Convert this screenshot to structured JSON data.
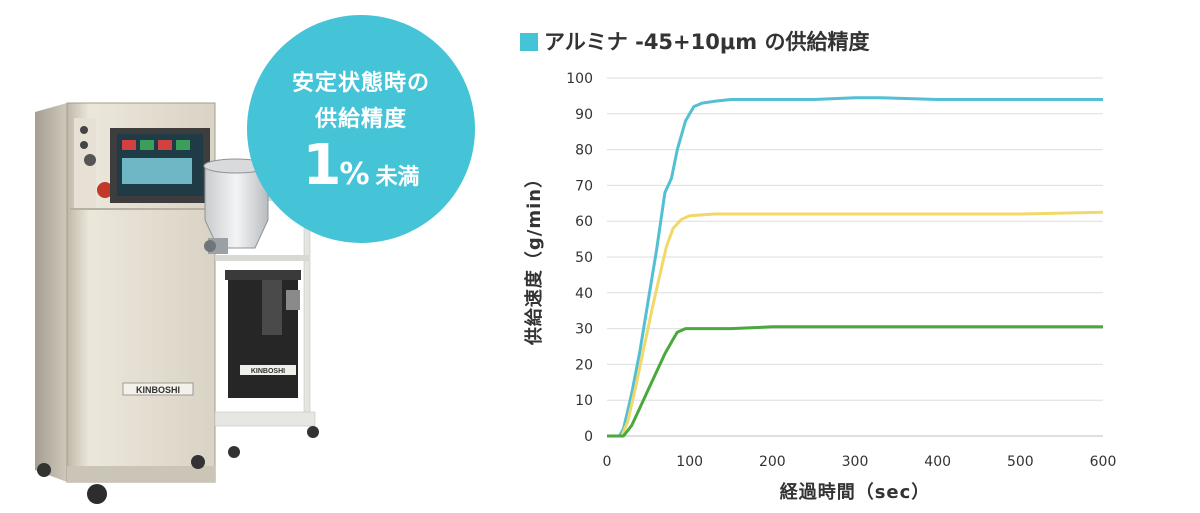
{
  "badge": {
    "line1": "安定状態時の",
    "line2": "供給精度",
    "value": "1",
    "unit": "%",
    "suffix": "未満"
  },
  "machine": {
    "brand_main": "KINBOSHI",
    "brand_hopper": "KINBOSHI"
  },
  "chart_data": {
    "type": "line",
    "title": "アルミナ -45+10μm の供給精度",
    "xlabel": "経過時間（sec）",
    "ylabel": "供給速度（g/min）",
    "xlim": [
      0,
      600
    ],
    "ylim": [
      0,
      100
    ],
    "xticks": [
      0,
      100,
      200,
      300,
      400,
      500,
      600
    ],
    "yticks": [
      0,
      10,
      20,
      30,
      40,
      50,
      60,
      70,
      80,
      90,
      100
    ],
    "grid": "horizontal",
    "legend": "none",
    "series": [
      {
        "color": "#52bfd3",
        "x": [
          0,
          15,
          20,
          30,
          40,
          50,
          60,
          70,
          78,
          85,
          95,
          105,
          115,
          130,
          150,
          200,
          250,
          300,
          330,
          400,
          500,
          600
        ],
        "y": [
          0,
          0,
          2,
          12,
          24,
          38,
          52,
          68,
          72,
          80,
          88,
          92,
          93,
          93.5,
          94,
          94,
          94,
          94.5,
          94.5,
          94,
          94,
          94
        ]
      },
      {
        "color": "#f0d96a",
        "x": [
          0,
          18,
          25,
          35,
          45,
          55,
          65,
          72,
          80,
          90,
          100,
          130,
          200,
          300,
          400,
          500,
          600
        ],
        "y": [
          0,
          0,
          4,
          14,
          25,
          36,
          46,
          53,
          58,
          60.5,
          61.5,
          62,
          62,
          62,
          62,
          62,
          62.5
        ]
      },
      {
        "color": "#4aa83e",
        "x": [
          0,
          20,
          30,
          40,
          50,
          60,
          70,
          80,
          85,
          95,
          110,
          150,
          200,
          300,
          400,
          500,
          600
        ],
        "y": [
          0,
          0,
          3,
          8,
          13,
          18,
          23,
          27,
          29,
          30,
          30,
          30,
          30.5,
          30.5,
          30.5,
          30.5,
          30.5
        ]
      }
    ]
  }
}
